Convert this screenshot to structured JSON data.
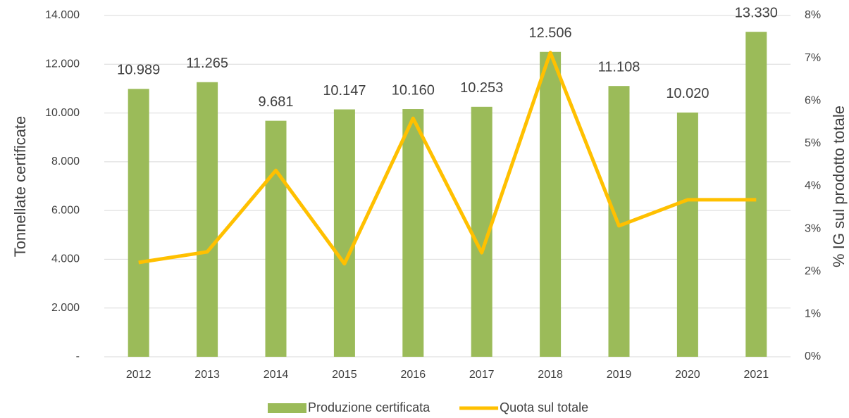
{
  "chart_data": {
    "type": "bar",
    "ylabel": "Tonnellate certificate",
    "y2label": "% IG sul prodotto totale",
    "categories": [
      "2012",
      "2013",
      "2014",
      "2015",
      "2016",
      "2017",
      "2018",
      "2019",
      "2020",
      "2021"
    ],
    "series": [
      {
        "name": "Produzione certificata",
        "type": "bar",
        "color": "#9bbb59",
        "values": [
          10989,
          11265,
          9681,
          10147,
          10160,
          10253,
          12506,
          11108,
          10020,
          13330
        ],
        "value_labels": [
          "10.989",
          "11.265",
          "9.681",
          "10.147",
          "10.160",
          "10.253",
          "12.506",
          "11.108",
          "10.020",
          "13.330"
        ]
      },
      {
        "name": "Quota sul totale",
        "type": "line",
        "axis": "y2",
        "color": "#ffc000",
        "values": [
          2.21,
          2.46,
          4.37,
          2.18,
          5.59,
          2.44,
          7.13,
          3.07,
          3.68,
          3.68
        ]
      }
    ],
    "ylim": [
      0,
      14000
    ],
    "yticks": [
      {
        "value": 0,
        "label": "-"
      },
      {
        "value": 2000,
        "label": "2.000"
      },
      {
        "value": 4000,
        "label": "4.000"
      },
      {
        "value": 6000,
        "label": "6.000"
      },
      {
        "value": 8000,
        "label": "8.000"
      },
      {
        "value": 10000,
        "label": "10.000"
      },
      {
        "value": 12000,
        "label": "12.000"
      },
      {
        "value": 14000,
        "label": "14.000"
      }
    ],
    "y2lim": [
      0,
      8
    ],
    "y2ticks": [
      {
        "value": 0,
        "label": "0%"
      },
      {
        "value": 1,
        "label": "1%"
      },
      {
        "value": 2,
        "label": "2%"
      },
      {
        "value": 3,
        "label": "3%"
      },
      {
        "value": 4,
        "label": "4%"
      },
      {
        "value": 5,
        "label": "5%"
      },
      {
        "value": 6,
        "label": "6%"
      },
      {
        "value": 7,
        "label": "7%"
      },
      {
        "value": 8,
        "label": "8%"
      }
    ],
    "grid": true,
    "legend": "bottom"
  }
}
